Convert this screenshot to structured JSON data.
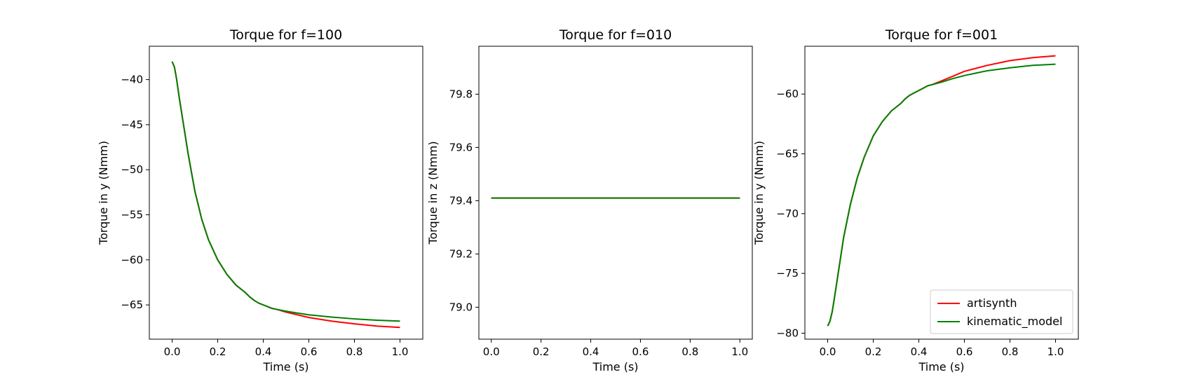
{
  "chart_data": [
    {
      "type": "line",
      "title": "Torque for f=100",
      "xlabel": "Time (s)",
      "ylabel": "Torque in y (Nmm)",
      "xlim": [
        -0.1,
        1.1
      ],
      "ylim": [
        -68.8,
        -36.3
      ],
      "xticks": [
        0.0,
        0.2,
        0.4,
        0.6,
        0.8,
        1.0
      ],
      "xtick_labels": [
        "0.0",
        "0.2",
        "0.4",
        "0.6",
        "0.8",
        "1.0"
      ],
      "yticks": [
        -40,
        -45,
        -50,
        -55,
        -60,
        -65
      ],
      "ytick_labels": [
        "−40",
        "−45",
        "−50",
        "−55",
        "−60",
        "−65"
      ],
      "grid": false,
      "series": [
        {
          "name": "artisynth",
          "color": "#ff0000",
          "x": [
            0,
            0.01,
            0.02,
            0.03,
            0.05,
            0.07,
            0.1,
            0.13,
            0.16,
            0.2,
            0.24,
            0.28,
            0.32,
            0.34,
            0.36,
            0.38,
            0.4,
            0.42,
            0.44,
            0.46,
            0.5,
            0.55,
            0.6,
            0.7,
            0.8,
            0.9,
            1.0
          ],
          "y": [
            -38.0,
            -38.6,
            -40.0,
            -41.8,
            -45.0,
            -48.2,
            -52.4,
            -55.5,
            -57.8,
            -60.0,
            -61.6,
            -62.8,
            -63.6,
            -64.1,
            -64.5,
            -64.8,
            -65.0,
            -65.2,
            -65.4,
            -65.5,
            -65.8,
            -66.1,
            -66.4,
            -66.8,
            -67.1,
            -67.35,
            -67.5
          ]
        },
        {
          "name": "kinematic_model",
          "color": "#008000",
          "x": [
            0,
            0.01,
            0.02,
            0.03,
            0.05,
            0.07,
            0.1,
            0.13,
            0.16,
            0.2,
            0.24,
            0.28,
            0.32,
            0.34,
            0.36,
            0.38,
            0.4,
            0.42,
            0.44,
            0.46,
            0.5,
            0.55,
            0.6,
            0.7,
            0.8,
            0.9,
            1.0
          ],
          "y": [
            -38.0,
            -38.6,
            -40.0,
            -41.8,
            -45.0,
            -48.2,
            -52.4,
            -55.5,
            -57.8,
            -60.0,
            -61.6,
            -62.8,
            -63.6,
            -64.1,
            -64.5,
            -64.8,
            -65.0,
            -65.2,
            -65.4,
            -65.5,
            -65.7,
            -65.9,
            -66.1,
            -66.35,
            -66.55,
            -66.7,
            -66.8
          ]
        }
      ]
    },
    {
      "type": "line",
      "title": "Torque for f=010",
      "xlabel": "Time (s)",
      "ylabel": "Torque in z (Nmm)",
      "xlim": [
        -0.05,
        1.05
      ],
      "ylim": [
        78.88,
        79.98
      ],
      "xticks": [
        0.0,
        0.2,
        0.4,
        0.6,
        0.8,
        1.0
      ],
      "xtick_labels": [
        "0.0",
        "0.2",
        "0.4",
        "0.6",
        "0.8",
        "1.0"
      ],
      "yticks": [
        79.0,
        79.2,
        79.4,
        79.6,
        79.8
      ],
      "ytick_labels": [
        "79.0",
        "79.2",
        "79.4",
        "79.6",
        "79.8"
      ],
      "grid": false,
      "series": [
        {
          "name": "artisynth",
          "color": "#ff0000",
          "x": [
            0,
            1.0
          ],
          "y": [
            79.41,
            79.41
          ]
        },
        {
          "name": "kinematic_model",
          "color": "#008000",
          "x": [
            0,
            1.0
          ],
          "y": [
            79.41,
            79.41
          ]
        }
      ]
    },
    {
      "type": "line",
      "title": "Torque for f=001",
      "xlabel": "Time (s)",
      "ylabel": "Torque in y (Nmm)",
      "xlim": [
        -0.1,
        1.1
      ],
      "ylim": [
        -80.5,
        -56.0
      ],
      "xticks": [
        0.0,
        0.2,
        0.4,
        0.6,
        0.8,
        1.0
      ],
      "xtick_labels": [
        "0.0",
        "0.2",
        "0.4",
        "0.6",
        "0.8",
        "1.0"
      ],
      "yticks": [
        -60,
        -65,
        -70,
        -75,
        -80
      ],
      "ytick_labels": [
        "−60",
        "−65",
        "−70",
        "−75",
        "−80"
      ],
      "grid": false,
      "legend": {
        "position": "lower-right",
        "entries": [
          "artisynth",
          "kinematic_model"
        ]
      },
      "series": [
        {
          "name": "artisynth",
          "color": "#ff0000",
          "x": [
            0,
            0.01,
            0.02,
            0.03,
            0.05,
            0.07,
            0.1,
            0.13,
            0.16,
            0.2,
            0.24,
            0.28,
            0.32,
            0.34,
            0.36,
            0.38,
            0.4,
            0.42,
            0.44,
            0.46,
            0.5,
            0.55,
            0.6,
            0.7,
            0.8,
            0.9,
            1.0
          ],
          "y": [
            -79.4,
            -79.0,
            -78.2,
            -77.0,
            -74.5,
            -72.0,
            -69.2,
            -67.0,
            -65.3,
            -63.5,
            -62.3,
            -61.4,
            -60.8,
            -60.4,
            -60.1,
            -59.9,
            -59.7,
            -59.5,
            -59.3,
            -59.2,
            -58.9,
            -58.5,
            -58.1,
            -57.6,
            -57.2,
            -56.95,
            -56.8
          ]
        },
        {
          "name": "kinematic_model",
          "color": "#008000",
          "x": [
            0,
            0.01,
            0.02,
            0.03,
            0.05,
            0.07,
            0.1,
            0.13,
            0.16,
            0.2,
            0.24,
            0.28,
            0.32,
            0.34,
            0.36,
            0.38,
            0.4,
            0.42,
            0.44,
            0.46,
            0.5,
            0.55,
            0.6,
            0.7,
            0.8,
            0.9,
            1.0
          ],
          "y": [
            -79.4,
            -79.0,
            -78.2,
            -77.0,
            -74.5,
            -72.0,
            -69.2,
            -67.0,
            -65.3,
            -63.5,
            -62.3,
            -61.4,
            -60.8,
            -60.4,
            -60.1,
            -59.9,
            -59.7,
            -59.5,
            -59.3,
            -59.2,
            -59.0,
            -58.7,
            -58.45,
            -58.05,
            -57.8,
            -57.6,
            -57.5
          ]
        }
      ]
    }
  ]
}
